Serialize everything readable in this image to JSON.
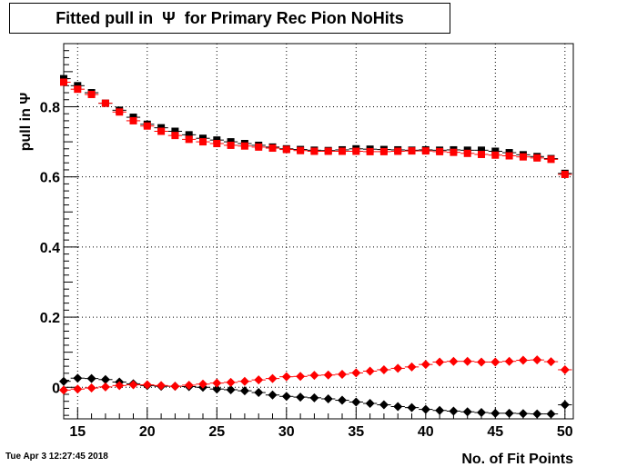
{
  "chart_data": {
    "type": "scatter",
    "title": "Fitted pull in  Ψ  for Primary Rec Pion NoHits",
    "xlabel": "No. of Fit Points",
    "ylabel": "pull in  Ψ",
    "xlim": [
      14,
      50.6
    ],
    "ylim": [
      -0.09,
      0.98
    ],
    "x_ticks": [
      "15",
      "20",
      "25",
      "30",
      "35",
      "40",
      "45",
      "50"
    ],
    "y_ticks": [
      "0",
      "0.2",
      "0.4",
      "0.6",
      "0.8"
    ],
    "grid": true,
    "x": [
      14,
      15,
      16,
      17,
      18,
      19,
      20,
      21,
      22,
      23,
      24,
      25,
      26,
      27,
      28,
      29,
      30,
      31,
      32,
      33,
      34,
      35,
      36,
      37,
      38,
      39,
      40,
      41,
      42,
      43,
      44,
      45,
      46,
      47,
      48,
      49,
      50
    ],
    "series": [
      {
        "marker": "square",
        "color": "#000000",
        "values": [
          0.88,
          0.86,
          0.84,
          0.81,
          0.79,
          0.77,
          0.75,
          0.74,
          0.73,
          0.72,
          0.71,
          0.705,
          0.7,
          0.695,
          0.69,
          0.685,
          0.68,
          0.678,
          0.676,
          0.675,
          0.677,
          0.68,
          0.679,
          0.678,
          0.677,
          0.676,
          0.677,
          0.676,
          0.677,
          0.676,
          0.676,
          0.673,
          0.669,
          0.663,
          0.658,
          0.652,
          0.61
        ]
      },
      {
        "marker": "square",
        "color": "#ff0000",
        "values": [
          0.87,
          0.85,
          0.835,
          0.81,
          0.785,
          0.76,
          0.745,
          0.73,
          0.718,
          0.707,
          0.7,
          0.695,
          0.69,
          0.688,
          0.685,
          0.682,
          0.678,
          0.675,
          0.673,
          0.673,
          0.673,
          0.673,
          0.672,
          0.672,
          0.673,
          0.674,
          0.674,
          0.672,
          0.67,
          0.667,
          0.664,
          0.662,
          0.66,
          0.657,
          0.654,
          0.65,
          0.607
        ]
      },
      {
        "marker": "diamond",
        "color": "#000000",
        "values": [
          0.017,
          0.026,
          0.025,
          0.022,
          0.015,
          0.01,
          0.005,
          0.003,
          0.003,
          0.002,
          0.0,
          -0.005,
          -0.007,
          -0.01,
          -0.015,
          -0.022,
          -0.026,
          -0.028,
          -0.03,
          -0.033,
          -0.037,
          -0.042,
          -0.046,
          -0.05,
          -0.055,
          -0.058,
          -0.063,
          -0.066,
          -0.068,
          -0.07,
          -0.072,
          -0.074,
          -0.074,
          -0.075,
          -0.076,
          -0.076,
          -0.05
        ]
      },
      {
        "marker": "diamond",
        "color": "#ff0000",
        "values": [
          -0.008,
          -0.005,
          -0.002,
          0.001,
          0.005,
          0.007,
          0.007,
          0.005,
          0.003,
          0.006,
          0.009,
          0.012,
          0.014,
          0.017,
          0.021,
          0.025,
          0.03,
          0.031,
          0.034,
          0.035,
          0.037,
          0.041,
          0.046,
          0.05,
          0.054,
          0.058,
          0.065,
          0.072,
          0.074,
          0.074,
          0.072,
          0.072,
          0.074,
          0.077,
          0.078,
          0.073,
          0.05
        ]
      }
    ]
  },
  "footer": {
    "timestamp": "Tue Apr  3 12:27:45 2018"
  }
}
